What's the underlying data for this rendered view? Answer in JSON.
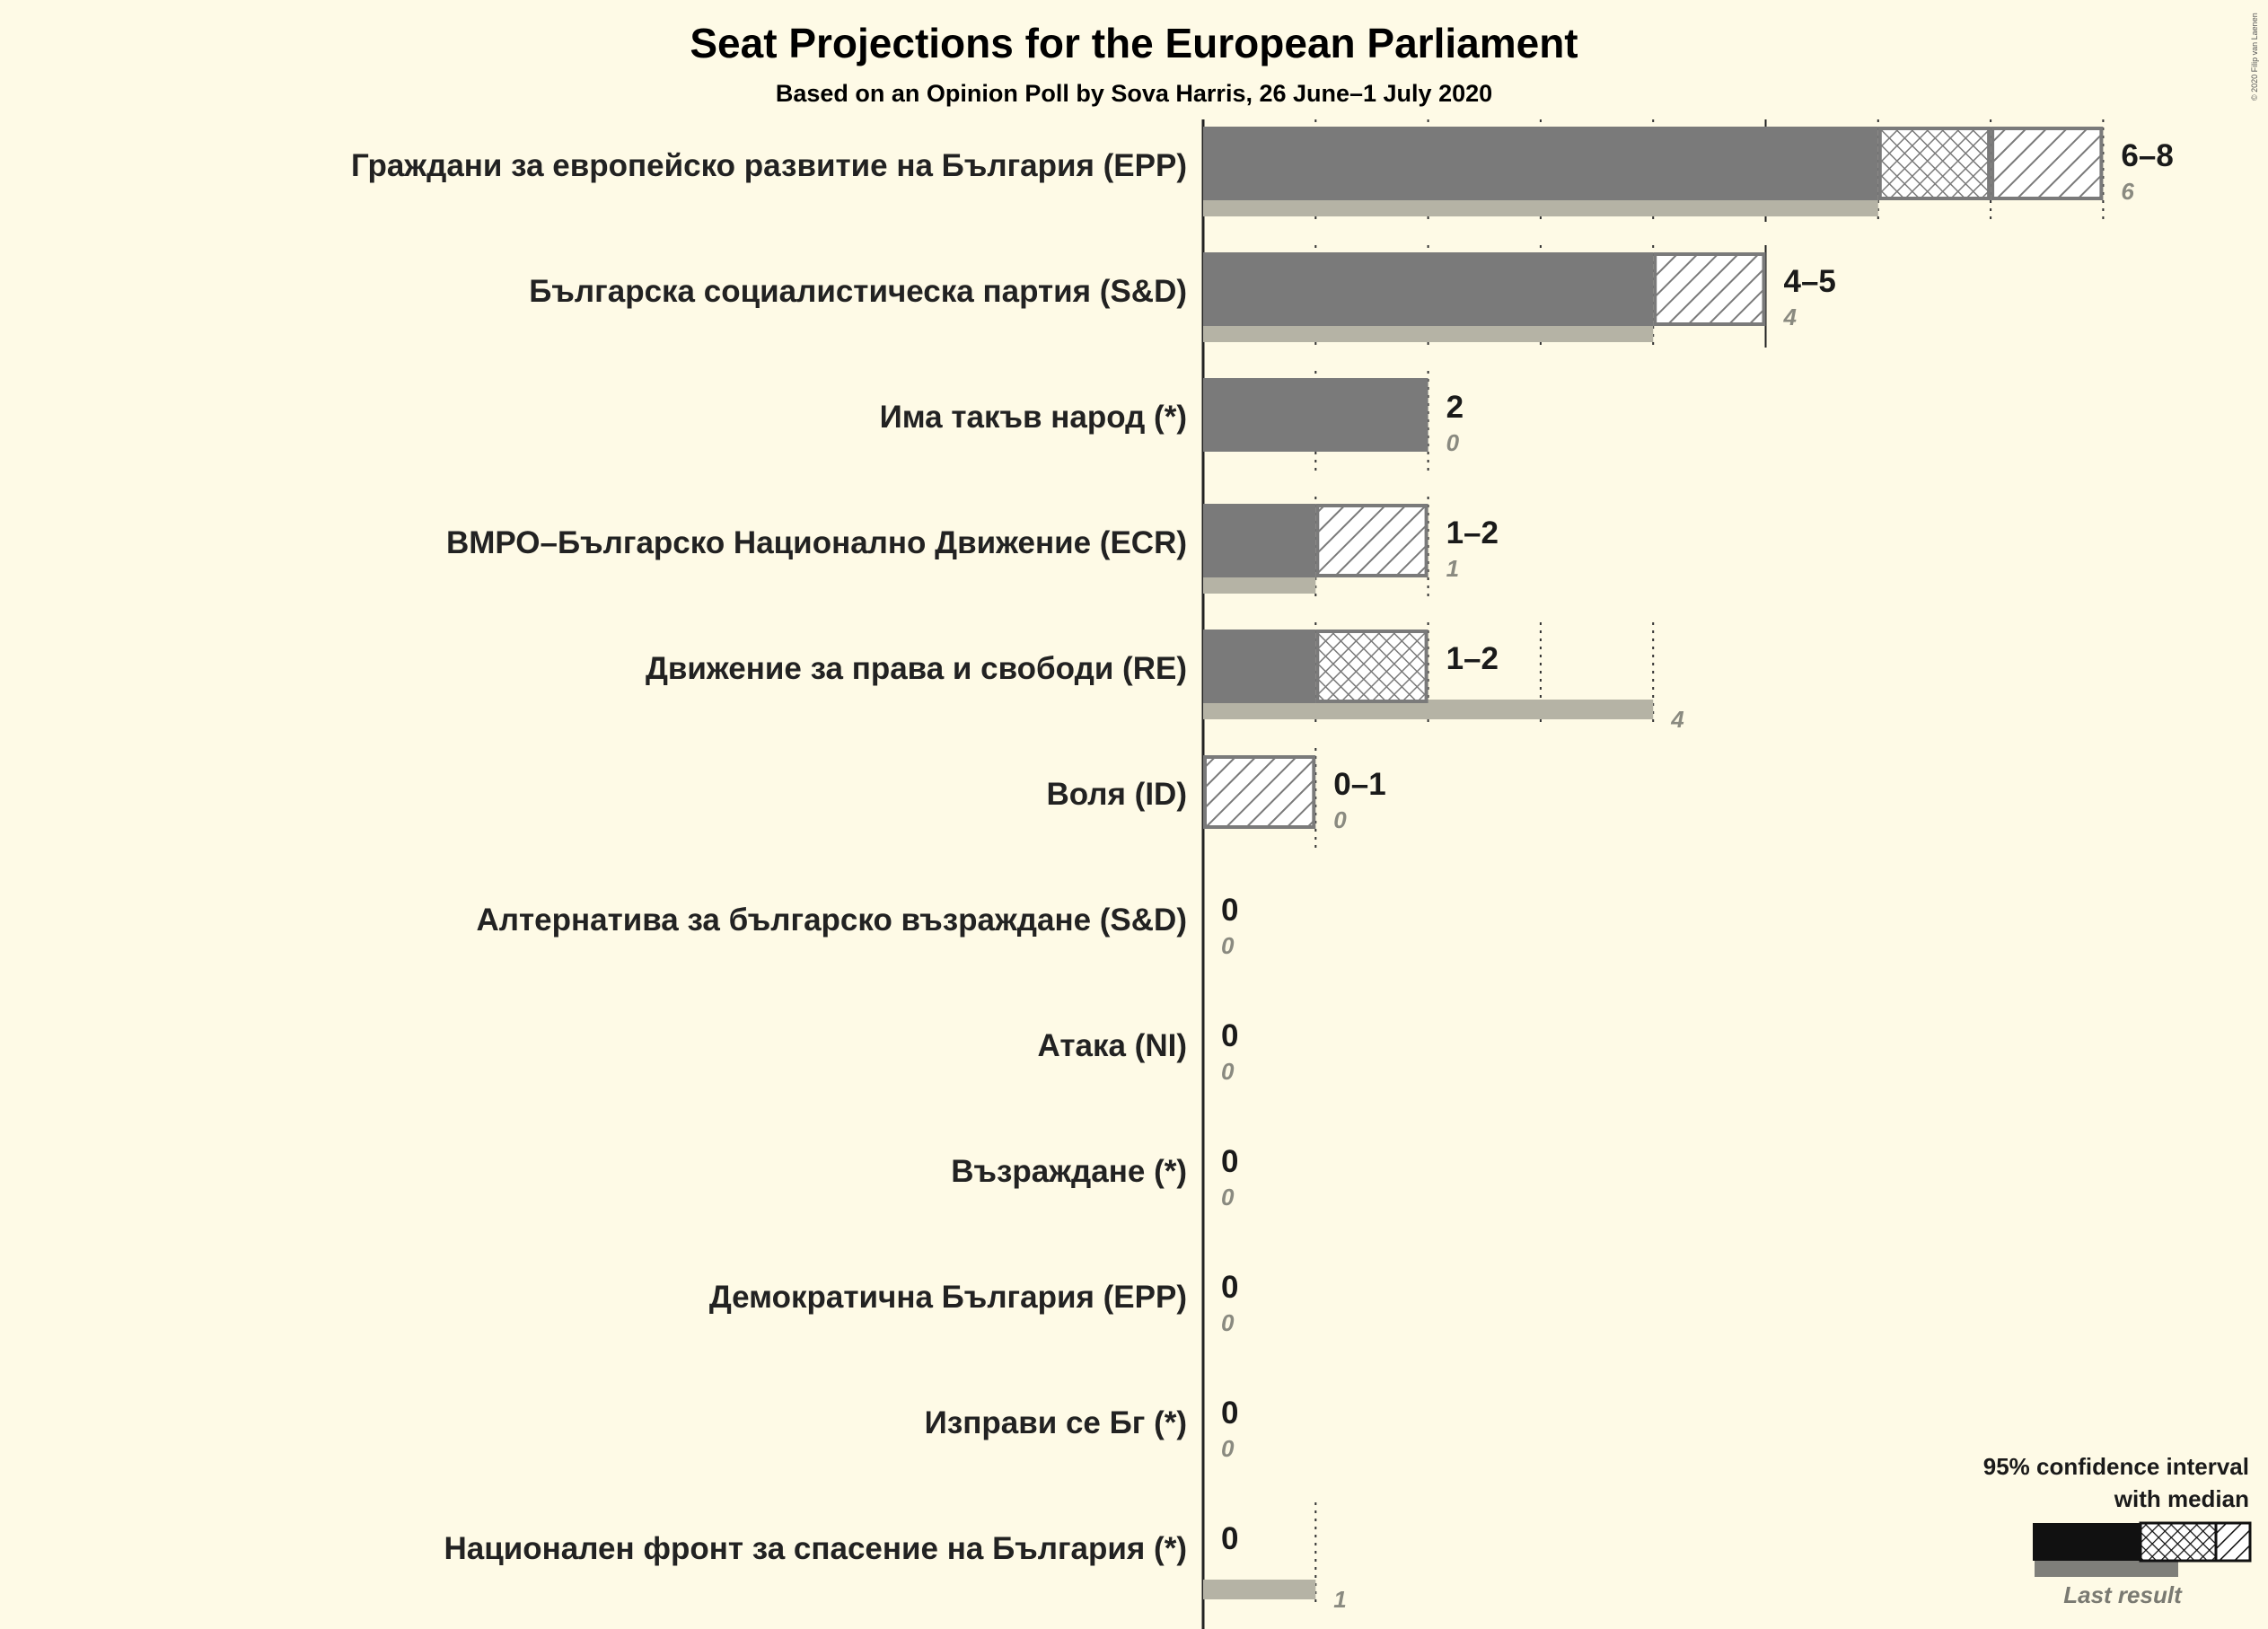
{
  "chart_data": {
    "type": "bar",
    "title": "Seat Projections for the European Parliament",
    "subtitle": "Based on an Opinion Poll by Sova Harris, 26 June–1 July 2020",
    "copyright": "© 2020 Filip van Laenen",
    "xlim": [
      0,
      8
    ],
    "grid": true,
    "legend_position": "bottom-right",
    "legend": {
      "title_line1": "95% confidence interval",
      "title_line2": "with median",
      "last_result_label": "Last result"
    },
    "colors": {
      "bar": "#7a7a7a",
      "last_result": "#b5b3a5",
      "background": "#fefae6",
      "legend_bar": "#111111"
    },
    "parties": [
      {
        "name": "Граждани за европейско развитие на България (EPP)",
        "low": 6,
        "median": 7,
        "high": 8,
        "range_label": "6–8",
        "last": 6
      },
      {
        "name": "Българска социалистическа партия (S&D)",
        "low": 4,
        "median": 4,
        "high": 5,
        "range_label": "4–5",
        "last": 4
      },
      {
        "name": "Има такъв народ (*)",
        "low": 2,
        "median": 2,
        "high": 2,
        "range_label": "2",
        "last": 0
      },
      {
        "name": "ВМРО–Българско Национално Движение (ECR)",
        "low": 1,
        "median": 1,
        "high": 2,
        "range_label": "1–2",
        "last": 1
      },
      {
        "name": "Движение за права и свободи (RE)",
        "low": 1,
        "median": 2,
        "high": 2,
        "range_label": "1–2",
        "last": 4
      },
      {
        "name": "Воля (ID)",
        "low": 0,
        "median": 0,
        "high": 1,
        "range_label": "0–1",
        "last": 0
      },
      {
        "name": "Алтернатива за българско възраждане (S&D)",
        "low": 0,
        "median": 0,
        "high": 0,
        "range_label": "0",
        "last": 0
      },
      {
        "name": "Атака (NI)",
        "low": 0,
        "median": 0,
        "high": 0,
        "range_label": "0",
        "last": 0
      },
      {
        "name": "Възраждане (*)",
        "low": 0,
        "median": 0,
        "high": 0,
        "range_label": "0",
        "last": 0
      },
      {
        "name": "Демократична България (EPP)",
        "low": 0,
        "median": 0,
        "high": 0,
        "range_label": "0",
        "last": 0
      },
      {
        "name": "Изправи се Бг (*)",
        "low": 0,
        "median": 0,
        "high": 0,
        "range_label": "0",
        "last": 0
      },
      {
        "name": "Национален фронт за спасение на България (*)",
        "low": 0,
        "median": 0,
        "high": 0,
        "range_label": "0",
        "last": 1
      }
    ]
  }
}
